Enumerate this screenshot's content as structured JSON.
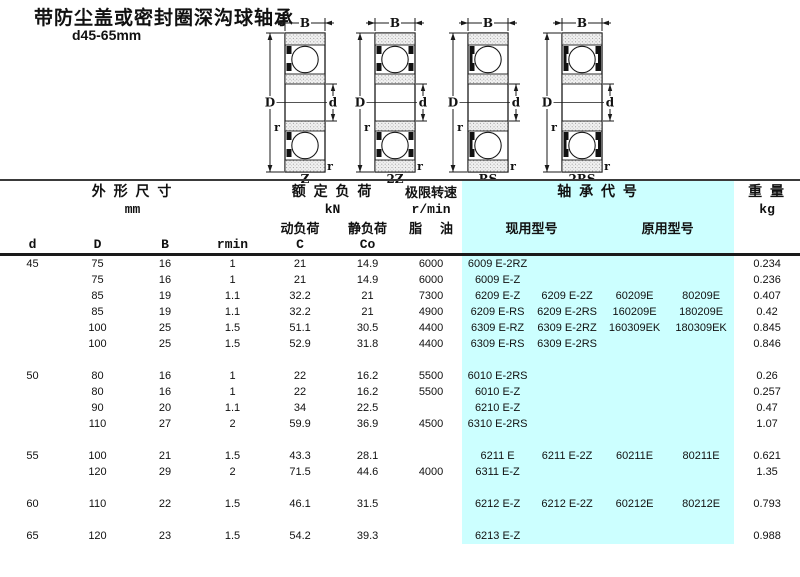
{
  "title": "带防尘盖或密封圈深沟球轴承",
  "subtitle": "d45-65mm",
  "colors": {
    "highlight": "#ccffff",
    "line": "#1a1a1a"
  },
  "diagram": {
    "dim_width_label": "B",
    "dim_outer_label": "D",
    "dim_bore_label": "d",
    "dim_fillet_label": "r",
    "types": [
      "Z",
      "2Z",
      "RS",
      "2RS"
    ]
  },
  "table": {
    "header": {
      "dims_group": "外 形 尺 寸",
      "dims_unit": "mm",
      "load_group": "额 定 负 荷",
      "load_unit": "kN",
      "dyn_load": "动负荷",
      "stat_load": "静负荷",
      "speed_group": "极限转速",
      "speed_unit": "r/min",
      "grease": "脂",
      "oil": "油",
      "code_group": "轴 承 代 号",
      "current_model": "现用型号",
      "original_model": "原用型号",
      "weight_group": "重 量",
      "weight_unit": "kg",
      "col_d": "d",
      "col_D": "D",
      "col_B": "B",
      "col_rmin": "rmin",
      "col_C": "C",
      "col_Co": "Co"
    },
    "rows": [
      {
        "d": "45",
        "D": "75",
        "B": "16",
        "rmin": "1",
        "C": "21",
        "Co": "14.9",
        "speed": "6000",
        "m1": "6009 E-2RZ",
        "m2": "",
        "m3": "",
        "m4": "",
        "kg": "0.234"
      },
      {
        "d": "",
        "D": "75",
        "B": "16",
        "rmin": "1",
        "C": "21",
        "Co": "14.9",
        "speed": "6000",
        "m1": "6009 E-Z",
        "m2": "",
        "m3": "",
        "m4": "",
        "kg": "0.236"
      },
      {
        "d": "",
        "D": "85",
        "B": "19",
        "rmin": "1.1",
        "C": "32.2",
        "Co": "21",
        "speed": "7300",
        "m1": "6209 E-Z",
        "m2": "6209 E-2Z",
        "m3": "60209E",
        "m4": "80209E",
        "kg": "0.407"
      },
      {
        "d": "",
        "D": "85",
        "B": "19",
        "rmin": "1.1",
        "C": "32.2",
        "Co": "21",
        "speed": "4900",
        "m1": "6209 E-RS",
        "m2": "6209 E-2RS",
        "m3": "160209E",
        "m4": "180209E",
        "kg": "0.42"
      },
      {
        "d": "",
        "D": "100",
        "B": "25",
        "rmin": "1.5",
        "C": "51.1",
        "Co": "30.5",
        "speed": "4400",
        "m1": "6309 E-RZ",
        "m2": "6309 E-2RZ",
        "m3": "160309EK",
        "m4": "180309EK",
        "kg": "0.845"
      },
      {
        "d": "",
        "D": "100",
        "B": "25",
        "rmin": "1.5",
        "C": "52.9",
        "Co": "31.8",
        "speed": "4400",
        "m1": "6309 E-RS",
        "m2": "6309 E-2RS",
        "m3": "",
        "m4": "",
        "kg": "0.846"
      },
      {
        "spacer": true
      },
      {
        "d": "50",
        "D": "80",
        "B": "16",
        "rmin": "1",
        "C": "22",
        "Co": "16.2",
        "speed": "5500",
        "m1": "6010 E-2RS",
        "m2": "",
        "m3": "",
        "m4": "",
        "kg": "0.26"
      },
      {
        "d": "",
        "D": "80",
        "B": "16",
        "rmin": "1",
        "C": "22",
        "Co": "16.2",
        "speed": "5500",
        "m1": "6010 E-Z",
        "m2": "",
        "m3": "",
        "m4": "",
        "kg": "0.257"
      },
      {
        "d": "",
        "D": "90",
        "B": "20",
        "rmin": "1.1",
        "C": "34",
        "Co": "22.5",
        "speed": "",
        "m1": "6210 E-Z",
        "m2": "",
        "m3": "",
        "m4": "",
        "kg": "0.47"
      },
      {
        "d": "",
        "D": "110",
        "B": "27",
        "rmin": "2",
        "C": "59.9",
        "Co": "36.9",
        "speed": "4500",
        "m1": "6310 E-2RS",
        "m2": "",
        "m3": "",
        "m4": "",
        "kg": "1.07"
      },
      {
        "spacer": true
      },
      {
        "d": "55",
        "D": "100",
        "B": "21",
        "rmin": "1.5",
        "C": "43.3",
        "Co": "28.1",
        "speed": "",
        "m1": "6211 E",
        "m2": "6211 E-2Z",
        "m3": "60211E",
        "m4": "80211E",
        "kg": "0.621"
      },
      {
        "d": "",
        "D": "120",
        "B": "29",
        "rmin": "2",
        "C": "71.5",
        "Co": "44.6",
        "speed": "4000",
        "m1": "6311 E-Z",
        "m2": "",
        "m3": "",
        "m4": "",
        "kg": "1.35"
      },
      {
        "spacer": true
      },
      {
        "d": "60",
        "D": "110",
        "B": "22",
        "rmin": "1.5",
        "C": "46.1",
        "Co": "31.5",
        "speed": "",
        "m1": "6212 E-Z",
        "m2": "6212 E-2Z",
        "m3": "60212E",
        "m4": "80212E",
        "kg": "0.793"
      },
      {
        "spacer": true
      },
      {
        "d": "65",
        "D": "120",
        "B": "23",
        "rmin": "1.5",
        "C": "54.2",
        "Co": "39.3",
        "speed": "",
        "m1": "6213 E-Z",
        "m2": "",
        "m3": "",
        "m4": "",
        "kg": "0.988"
      }
    ]
  }
}
